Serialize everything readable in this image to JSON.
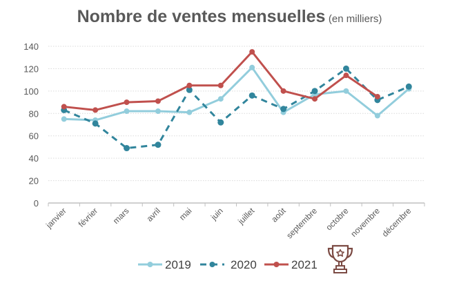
{
  "chart_data": {
    "type": "line",
    "title": "Nombre de ventes mensuelles",
    "subtitle": "(en milliers)",
    "xlabel": "",
    "ylabel": "",
    "ylim": [
      0,
      140
    ],
    "yticks": [
      0,
      20,
      40,
      60,
      80,
      100,
      120,
      140
    ],
    "grid": true,
    "legend_position": "bottom",
    "categories": [
      "janvier",
      "février",
      "mars",
      "avril",
      "mai",
      "juin",
      "juillet",
      "août",
      "septembre",
      "octobre",
      "novembre",
      "décembre"
    ],
    "series": [
      {
        "name": "2019",
        "color": "#92CDDC",
        "style": "solid",
        "values": [
          75,
          74,
          82,
          82,
          81,
          93,
          121,
          81,
          97,
          100,
          78,
          102
        ]
      },
      {
        "name": "2020",
        "color": "#31859C",
        "style": "dashed",
        "values": [
          83,
          71,
          49,
          52,
          101,
          72,
          96,
          84,
          100,
          120,
          92,
          104
        ]
      },
      {
        "name": "2021",
        "color": "#C0504D",
        "style": "solid",
        "values": [
          86,
          83,
          90,
          91,
          105,
          105,
          135,
          100,
          93,
          114,
          95,
          null
        ]
      }
    ]
  },
  "legend_icon": "trophy-icon",
  "colors": {
    "text": "#595959",
    "grid": "#D9D9D9",
    "axis": "#BFBFBF",
    "trophy": "#7B4A43"
  }
}
